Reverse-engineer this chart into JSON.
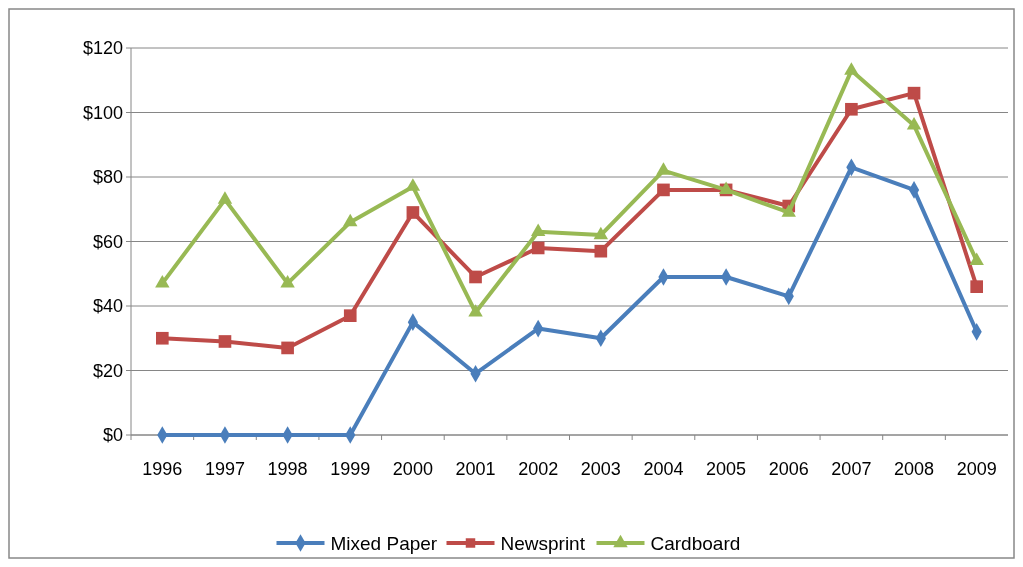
{
  "chart_data": {
    "type": "line",
    "categories": [
      "1996",
      "1997",
      "1998",
      "1999",
      "2000",
      "2001",
      "2002",
      "2003",
      "2004",
      "2005",
      "2006",
      "2007",
      "2008",
      "2009"
    ],
    "series": [
      {
        "name": "Mixed Paper",
        "color": "#4a7ebb",
        "marker": "diamond",
        "values": [
          0,
          0,
          0,
          0,
          35,
          19,
          33,
          30,
          49,
          49,
          43,
          83,
          76,
          32
        ]
      },
      {
        "name": "Newsprint",
        "color": "#be4b48",
        "marker": "square",
        "values": [
          30,
          29,
          27,
          37,
          69,
          49,
          58,
          57,
          76,
          76,
          71,
          101,
          106,
          46
        ]
      },
      {
        "name": "Cardboard",
        "color": "#98b954",
        "marker": "triangle",
        "values": [
          47,
          73,
          47,
          66,
          77,
          38,
          63,
          62,
          82,
          76,
          69,
          113,
          96,
          54
        ]
      }
    ],
    "ylim": [
      0,
      120
    ],
    "yticks": [
      {
        "value": 0,
        "label": "$0"
      },
      {
        "value": 20,
        "label": "$20"
      },
      {
        "value": 40,
        "label": "$40"
      },
      {
        "value": 60,
        "label": "$60"
      },
      {
        "value": 80,
        "label": "$80"
      },
      {
        "value": 100,
        "label": "$100"
      },
      {
        "value": 120,
        "label": "$120"
      }
    ],
    "grid": "y",
    "legend": "bottom"
  }
}
